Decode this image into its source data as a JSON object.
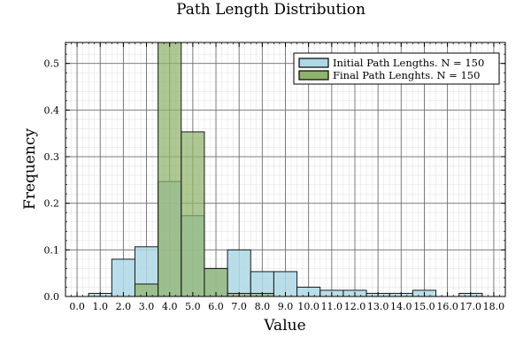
{
  "chart_data": {
    "type": "bar",
    "title": "Path Length Distribution",
    "xlabel": "Value",
    "ylabel": "Frequency",
    "xlim": [
      -0.5,
      18.5
    ],
    "ylim": [
      0,
      0.545
    ],
    "x_ticks": [
      0,
      1,
      2,
      3,
      4,
      5,
      6,
      7,
      8,
      9,
      10,
      11,
      12,
      13,
      14,
      15,
      16,
      17,
      18
    ],
    "x_tick_labels": [
      "0.0",
      "1.0",
      "2.0",
      "3.0",
      "4.0",
      "5.0",
      "6.0",
      "7.0",
      "8.0",
      "9.0",
      "10.0",
      "11.0",
      "12.0",
      "13.0",
      "14.0",
      "15.0",
      "16.0",
      "17.0",
      "18.0"
    ],
    "y_ticks": [
      0,
      0.1,
      0.2,
      0.3,
      0.4,
      0.5
    ],
    "y_tick_labels": [
      "0.0",
      "0.1",
      "0.2",
      "0.3",
      "0.4",
      "0.5"
    ],
    "bin_edges": [
      0.5,
      1.5,
      2.5,
      3.5,
      4.5,
      5.5,
      6.5,
      7.5,
      8.5,
      9.5,
      10.5,
      11.5,
      12.5,
      13.5,
      14.5,
      15.5,
      16.5,
      17.5
    ],
    "grid": true,
    "legend_position": "top-right",
    "series": [
      {
        "name": "Initial Path Lengths. N = 150",
        "color": "#add8e6",
        "values": [
          0.0067,
          0.08,
          0.1067,
          0.2467,
          0.1733,
          0.06,
          0.1,
          0.0533,
          0.0533,
          0.02,
          0.0133,
          0.0133,
          0.0067,
          0.0067,
          0.0133,
          0,
          0.0067
        ]
      },
      {
        "name": "Final Path Lenghts. N = 150",
        "color": "#8fb36b",
        "values": [
          0,
          0,
          0.0267,
          0.58,
          0.3533,
          0.06,
          0.0067,
          0.0067,
          0,
          0,
          0,
          0,
          0,
          0,
          0,
          0,
          0
        ]
      }
    ]
  }
}
